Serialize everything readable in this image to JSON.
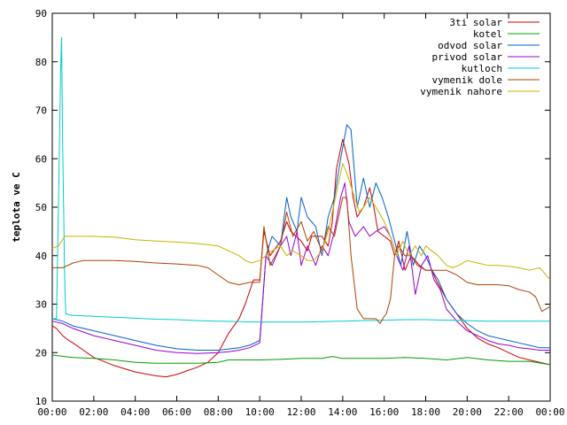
{
  "chart_data": {
    "type": "line",
    "title": "",
    "xlabel": "",
    "ylabel": "teplota ve C",
    "xlim": [
      0,
      24
    ],
    "ylim": [
      10,
      90
    ],
    "x_ticks": [
      "00:00",
      "02:00",
      "04:00",
      "06:00",
      "08:00",
      "10:00",
      "12:00",
      "14:00",
      "16:00",
      "18:00",
      "20:00",
      "22:00",
      "00:00"
    ],
    "y_ticks": [
      "10",
      "20",
      "30",
      "40",
      "50",
      "60",
      "70",
      "80",
      "90"
    ],
    "grid": false,
    "legend_position": "top-right",
    "series": [
      {
        "name": "3ti solar",
        "color": "#cc0000",
        "x": [
          0,
          0.2,
          0.5,
          0.8,
          1,
          1.5,
          2,
          3,
          4,
          5,
          5.5,
          6,
          7,
          7.5,
          8,
          8.5,
          9,
          9.3,
          9.7,
          10,
          10.2,
          10.5,
          11,
          11.3,
          11.5,
          12,
          12.3,
          12.5,
          13,
          13.3,
          13.5,
          13.7,
          14,
          14.3,
          14.5,
          14.7,
          15,
          15.3,
          15.5,
          15.7,
          16,
          16.3,
          16.5,
          16.7,
          17,
          17.3,
          17.5,
          17.7,
          18,
          18.3,
          18.5,
          19,
          19.5,
          20,
          20.5,
          21,
          21.5,
          22,
          22.5,
          23,
          23.5,
          24
        ],
        "y": [
          25.5,
          25,
          23.5,
          22.5,
          22,
          20.5,
          19,
          17.3,
          16,
          15.2,
          15,
          15.5,
          17,
          18,
          20,
          24,
          27,
          30,
          35,
          35,
          45,
          40,
          43,
          47,
          45,
          43,
          41,
          44,
          44,
          42,
          47,
          58,
          64,
          59,
          52,
          48,
          50,
          54,
          50,
          45,
          44,
          43,
          40,
          43,
          37,
          40,
          39,
          38,
          37,
          37,
          35,
          31,
          28,
          25,
          23,
          21.8,
          21,
          20,
          19,
          18.5,
          18,
          17.5
        ]
      },
      {
        "name": "kotel",
        "color": "#00a000",
        "x": [
          0,
          1,
          2,
          3,
          4,
          5,
          6,
          7,
          8,
          8.5,
          9,
          10,
          11,
          12,
          13,
          13.5,
          14,
          15,
          16,
          17,
          18,
          19,
          20,
          21,
          22,
          23,
          24
        ],
        "y": [
          19.5,
          19,
          18.8,
          18.5,
          18,
          17.8,
          17.8,
          17.8,
          18,
          18.5,
          18.5,
          18.5,
          18.6,
          18.8,
          18.8,
          19.2,
          18.8,
          18.8,
          18.8,
          19,
          18.8,
          18.5,
          19,
          18.5,
          18.2,
          18.2,
          17.5
        ]
      },
      {
        "name": "odvod solar",
        "color": "#0060cc",
        "x": [
          0,
          0.5,
          1,
          2,
          3,
          4,
          5,
          6,
          7,
          8,
          9,
          9.5,
          10,
          10.3,
          10.6,
          11,
          11.3,
          11.5,
          11.8,
          12,
          12.3,
          12.7,
          13,
          13.3,
          13.6,
          13.9,
          14.2,
          14.4,
          14.7,
          15,
          15.3,
          15.6,
          15.9,
          16.2,
          16.5,
          16.8,
          17.1,
          17.4,
          17.7,
          18,
          18.3,
          18.6,
          19,
          19.5,
          20,
          20.5,
          21,
          21.5,
          22,
          22.5,
          23,
          23.5,
          24
        ],
        "y": [
          27,
          26.5,
          25.5,
          24.5,
          23.5,
          22.5,
          21.5,
          20.8,
          20.5,
          20.5,
          21,
          21.5,
          22.5,
          40,
          44,
          42,
          52,
          48,
          45,
          52,
          48,
          46,
          40,
          48,
          52,
          60,
          67,
          66,
          50,
          56,
          50,
          55,
          52,
          48,
          43,
          38,
          45,
          38,
          42,
          40,
          37,
          35,
          31,
          28,
          26,
          24.5,
          23.5,
          23,
          22.5,
          22,
          21.5,
          21,
          21
        ]
      },
      {
        "name": "privod solar",
        "color": "#9900cc",
        "x": [
          0,
          0.5,
          1,
          2,
          3,
          4,
          5,
          6,
          7,
          8,
          8.5,
          9,
          9.5,
          10,
          10.3,
          10.6,
          11,
          11.3,
          11.5,
          11.8,
          12,
          12.3,
          12.7,
          13,
          13.3,
          13.6,
          13.9,
          14.1,
          14.3,
          14.6,
          15,
          15.3,
          15.6,
          16,
          16.3,
          16.6,
          16.9,
          17.2,
          17.5,
          17.8,
          18.1,
          18.4,
          18.7,
          19,
          19.5,
          20,
          20.5,
          21,
          21.5,
          22,
          22.5,
          23,
          23.5,
          24
        ],
        "y": [
          26.5,
          26,
          25,
          23.5,
          22.5,
          21.5,
          20.5,
          20,
          19.8,
          20,
          20.2,
          20.5,
          21,
          22,
          40,
          38,
          42,
          44,
          40,
          45,
          38,
          42,
          38,
          42,
          40,
          45,
          52,
          55,
          47,
          44,
          46,
          44,
          45,
          46,
          44,
          40,
          37,
          42,
          32,
          38,
          40,
          35,
          33,
          29,
          26.5,
          24.5,
          23.5,
          22.5,
          21.8,
          21.5,
          21,
          20.8,
          20.5,
          20.5
        ]
      },
      {
        "name": "kutloch",
        "color": "#00cccc",
        "x": [
          0,
          0.2,
          0.3,
          0.4,
          0.45,
          0.5,
          0.55,
          0.6,
          0.65,
          0.7,
          0.8,
          1,
          2,
          3,
          4,
          5,
          6,
          7,
          8,
          9,
          10,
          11,
          12,
          13,
          14,
          15,
          16,
          17,
          18,
          19,
          20,
          21,
          22,
          23,
          24
        ],
        "y": [
          27,
          27,
          50,
          78,
          85,
          63,
          49,
          35,
          28,
          28,
          27.8,
          27.7,
          27.5,
          27.3,
          27.1,
          26.9,
          26.8,
          26.6,
          26.5,
          26.4,
          26.3,
          26.3,
          26.3,
          26.4,
          26.5,
          26.6,
          26.7,
          26.8,
          26.8,
          26.7,
          26.6,
          26.5,
          26.5,
          26.5,
          26.5
        ]
      },
      {
        "name": "vymenik dole",
        "color": "#b04000",
        "x": [
          0,
          0.5,
          1,
          1.5,
          2,
          3,
          4,
          5,
          6,
          7,
          7.5,
          8,
          8.5,
          9,
          9.5,
          10,
          10.2,
          10.5,
          11,
          11.3,
          11.6,
          12,
          12.3,
          12.6,
          13,
          13.3,
          13.6,
          14,
          14.2,
          14.4,
          14.7,
          15,
          15.3,
          15.6,
          15.8,
          16,
          16.1,
          16.3,
          16.5,
          16.7,
          17,
          17.3,
          17.6,
          18,
          18.5,
          19,
          19.5,
          20,
          20.5,
          21,
          21.5,
          22,
          22.5,
          23,
          23.3,
          23.6,
          24
        ],
        "y": [
          37.5,
          37.5,
          38.5,
          39,
          39,
          39,
          38.8,
          38.5,
          38.3,
          38,
          37.5,
          36,
          34.5,
          34,
          34.5,
          34.5,
          46,
          38,
          42,
          49,
          44,
          47,
          43,
          45,
          41,
          46,
          44,
          52,
          52,
          40,
          29,
          27,
          27,
          27,
          26,
          27.5,
          28,
          31,
          40,
          42,
          40,
          40,
          38,
          37,
          37,
          37,
          36,
          34.5,
          34,
          34,
          34,
          33.8,
          33,
          32.5,
          31.5,
          28.5,
          29.5
        ]
      },
      {
        "name": "vymenik nahore",
        "color": "#c8b400",
        "x": [
          0,
          0.3,
          0.6,
          1,
          2,
          3,
          4,
          5,
          6,
          7,
          8,
          8.5,
          9,
          9.3,
          9.6,
          10,
          10.3,
          10.6,
          11,
          11.3,
          11.6,
          12,
          12.3,
          12.6,
          13,
          13.3,
          13.6,
          14,
          14.2,
          14.5,
          14.8,
          15,
          15.3,
          15.6,
          16,
          16.3,
          16.6,
          16.9,
          17.2,
          17.5,
          17.8,
          18,
          18.3,
          18.6,
          19,
          19.3,
          19.6,
          20,
          20.5,
          21,
          21.5,
          22,
          22.5,
          23,
          23.5,
          24
        ],
        "y": [
          41.5,
          42,
          44,
          44,
          44,
          43.8,
          43.3,
          43,
          42.8,
          42.5,
          42,
          41,
          40,
          39,
          38.5,
          39,
          40,
          41,
          42,
          40,
          41,
          40,
          39,
          39,
          41,
          45,
          51,
          59,
          57,
          53,
          49,
          50,
          52,
          50,
          47,
          44,
          40,
          43,
          40,
          42,
          40,
          42,
          41,
          40,
          38,
          37.5,
          38,
          39,
          38.5,
          38,
          38,
          37.8,
          37.5,
          37,
          37.5,
          35
        ]
      }
    ]
  }
}
